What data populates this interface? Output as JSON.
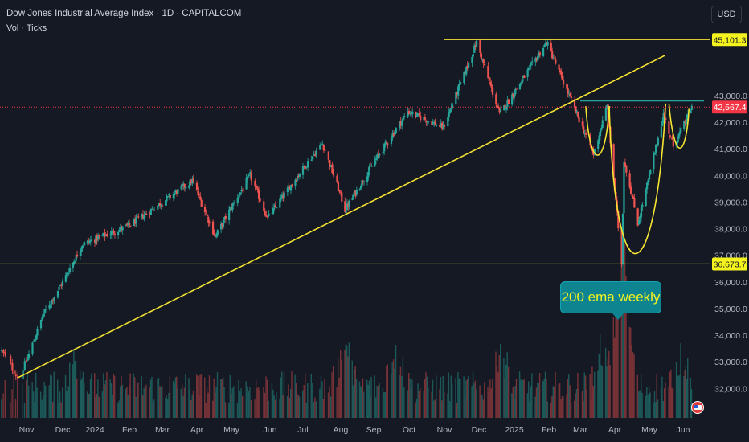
{
  "header": {
    "title": "Dow Jones Industrial Average Index · 1D · CAPITALCOM",
    "indicator": "Vol · Ticks",
    "currency_button": "USD"
  },
  "annotation": {
    "text": "200 ema weekly"
  },
  "colors": {
    "background": "#151924",
    "up_candle": "#26a69a",
    "down_candle": "#ef5350",
    "trendline": "#f5e432",
    "resistance_line": "#26a69a",
    "current_price_line": "#f23645",
    "axis_text": "#b2b5be"
  },
  "chart_data": {
    "type": "candlestick",
    "title": "Dow Jones Industrial Average Index",
    "interval": "1D",
    "source": "CAPITALCOM",
    "y_axis": {
      "range": [
        31300,
        45600
      ],
      "ticks": [
        "43,000.0",
        "42,000.0",
        "41,000.0",
        "40,000.0",
        "39,000.0",
        "38,000.0",
        "37,000.0",
        "36,000.0",
        "35,000.0",
        "34,000.0",
        "33,000.0",
        "32,000.0"
      ]
    },
    "x_axis": {
      "ticks": [
        "Nov",
        "Dec",
        "2024",
        "Feb",
        "Mar",
        "Apr",
        "May",
        "Jun",
        "Jul",
        "Aug",
        "Sep",
        "Oct",
        "Nov",
        "Dec",
        "2025",
        "Feb",
        "Mar",
        "Apr",
        "May",
        "Jun"
      ]
    },
    "price_labels": [
      {
        "value": 45101.3,
        "label": "45,101.3",
        "style": "yellow"
      },
      {
        "value": 42567.4,
        "label": "42,567.4",
        "style": "red"
      },
      {
        "value": 36673.7,
        "label": "36,673.7",
        "style": "yellow"
      }
    ],
    "last_price": 42567.4,
    "approx_closes": [
      {
        "date": "2023-10-27",
        "close": 32400
      },
      {
        "date": "2023-11-15",
        "close": 34800
      },
      {
        "date": "2023-12-20",
        "close": 37400
      },
      {
        "date": "2024-01-31",
        "close": 38100
      },
      {
        "date": "2024-03-28",
        "close": 39800
      },
      {
        "date": "2024-04-17",
        "close": 37700
      },
      {
        "date": "2024-05-16",
        "close": 40000
      },
      {
        "date": "2024-05-30",
        "close": 38400
      },
      {
        "date": "2024-07-17",
        "close": 41200
      },
      {
        "date": "2024-08-05",
        "close": 38700
      },
      {
        "date": "2024-09-30",
        "close": 42400
      },
      {
        "date": "2024-10-31",
        "close": 41800
      },
      {
        "date": "2024-11-29",
        "close": 45000
      },
      {
        "date": "2024-12-19",
        "close": 42300
      },
      {
        "date": "2025-01-30",
        "close": 45000
      },
      {
        "date": "2025-03-13",
        "close": 40800
      },
      {
        "date": "2025-03-25",
        "close": 42600
      },
      {
        "date": "2025-04-07",
        "close": 36700
      },
      {
        "date": "2025-04-09",
        "close": 40600
      },
      {
        "date": "2025-04-21",
        "close": 38200
      },
      {
        "date": "2025-05-14",
        "close": 42300
      },
      {
        "date": "2025-05-23",
        "close": 41100
      },
      {
        "date": "2025-06-10",
        "close": 42567
      }
    ],
    "drawings": [
      {
        "type": "trendline",
        "from": {
          "date": "2023-10-27",
          "price": 32400
        },
        "to": {
          "date": "2025-05-15",
          "price": 44500
        }
      },
      {
        "type": "horizontal",
        "price": 45101.3
      },
      {
        "type": "horizontal",
        "price": 36673.7
      },
      {
        "type": "horizontal",
        "price": 42800,
        "from_date": "2025-03-01"
      }
    ],
    "grid": false
  }
}
